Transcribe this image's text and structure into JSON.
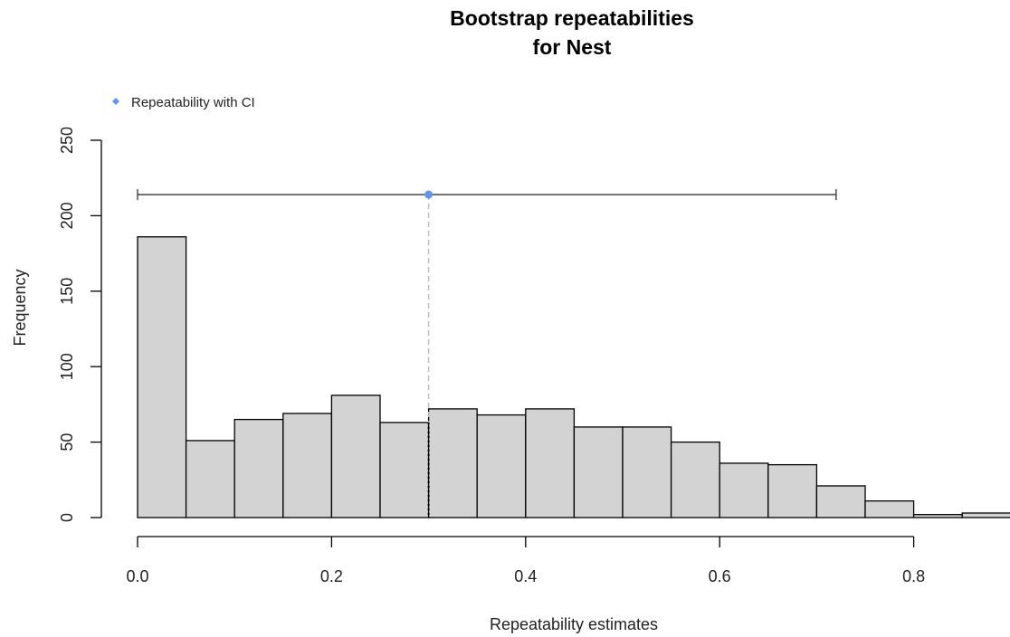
{
  "chart_data": {
    "type": "bar",
    "title_line1": "Bootstrap repeatabilities",
    "title_line2": "for Nest",
    "xlabel": "Repeatability estimates",
    "ylabel": "Frequency",
    "xlim": [
      0,
      0.9
    ],
    "ylim": [
      0,
      250
    ],
    "x_ticks": [
      "0.0",
      "0.2",
      "0.4",
      "0.6",
      "0.8"
    ],
    "x_tick_values": [
      0.0,
      0.2,
      0.4,
      0.6,
      0.8
    ],
    "y_ticks": [
      "0",
      "50",
      "100",
      "150",
      "200",
      "250"
    ],
    "y_tick_values": [
      0,
      50,
      100,
      150,
      200,
      250
    ],
    "bin_width": 0.05,
    "bin_starts": [
      0.0,
      0.05,
      0.1,
      0.15,
      0.2,
      0.25,
      0.3,
      0.35,
      0.4,
      0.45,
      0.5,
      0.55,
      0.6,
      0.65,
      0.7,
      0.75,
      0.8,
      0.85
    ],
    "values": [
      186,
      51,
      65,
      69,
      81,
      63,
      72,
      68,
      72,
      60,
      60,
      50,
      36,
      35,
      21,
      11,
      2,
      3
    ],
    "bar_fill": "#d3d3d3",
    "bar_stroke": "#000000",
    "estimate": 0.3,
    "ci": [
      0.0,
      0.72
    ],
    "ci_y": 214,
    "point_color": "#6495ed",
    "legend": {
      "label": "Repeatability with CI",
      "position": "top-left"
    }
  }
}
